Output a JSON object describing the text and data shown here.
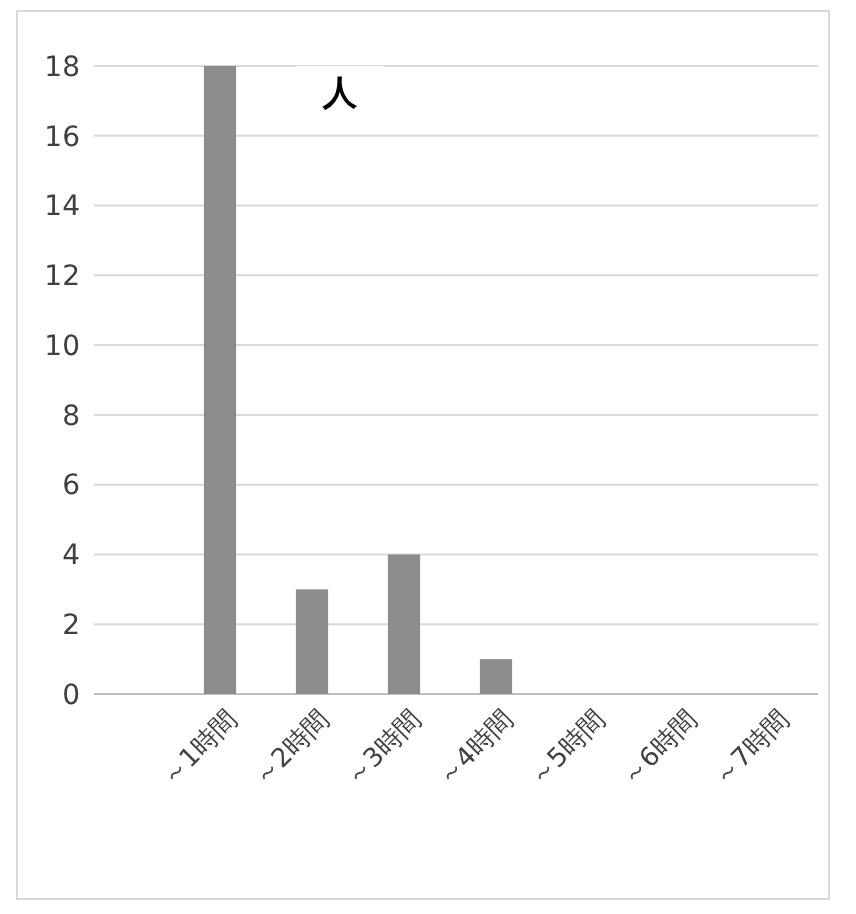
{
  "chart_data": {
    "type": "bar",
    "ylabel": "人",
    "categories": [
      "～1時間",
      "～2時間",
      "～3時間",
      "～4時間",
      "～5時間",
      "～6時間",
      "～7時間"
    ],
    "values": [
      18,
      3,
      4,
      1,
      0,
      0,
      0
    ],
    "color": "#8c8c8c",
    "ylim": [
      0,
      18
    ],
    "yticks": [
      0,
      2,
      4,
      6,
      8,
      10,
      12,
      14,
      16,
      18
    ],
    "grid": "y"
  }
}
